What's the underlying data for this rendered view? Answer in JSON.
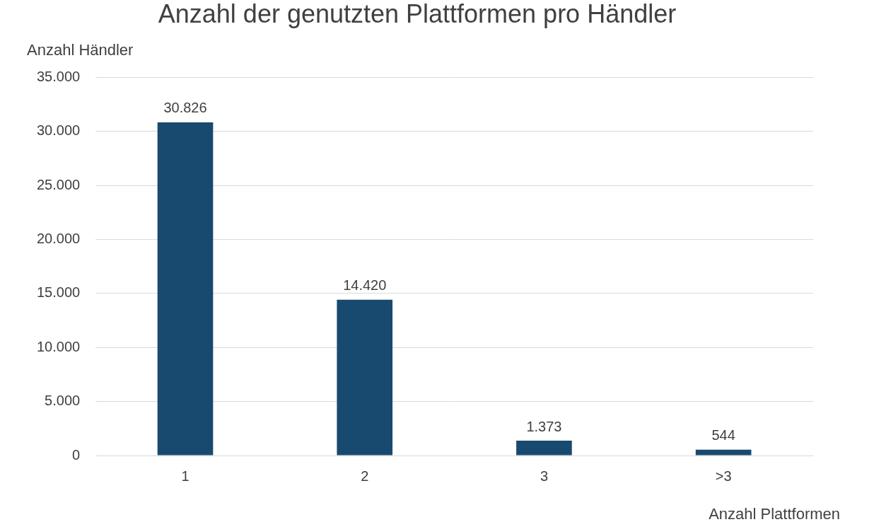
{
  "chart_data": {
    "type": "bar",
    "title": "Anzahl der genutzten Plattformen pro Händler",
    "y_label": "Anzahl Händler",
    "x_label": "Anzahl Plattformen",
    "categories": [
      "1",
      "2",
      "3",
      ">3"
    ],
    "values": [
      30826,
      14420,
      1373,
      544
    ],
    "value_labels": [
      "30.826",
      "14.420",
      "1.373",
      "544"
    ],
    "color": "#174a6e",
    "ylim": [
      0,
      35000
    ],
    "yticks": [
      0,
      {
        "value": 5000,
        "label": "5.000"
      },
      {
        "value": 10000,
        "label": "10.000"
      },
      {
        "value": 15000,
        "label": "15.000"
      },
      {
        "value": 20000,
        "label": "20.000"
      },
      {
        "value": 25000,
        "label": "25.000"
      },
      {
        "value": 30000,
        "label": "30.000"
      },
      {
        "value": 35000,
        "label": "35.000"
      }
    ],
    "grid": true,
    "data_labels": true
  }
}
